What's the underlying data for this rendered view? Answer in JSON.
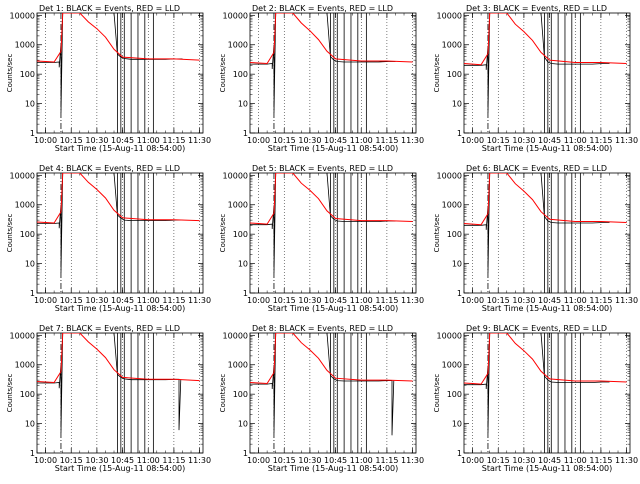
{
  "figure": {
    "start_time_label": "Start Time (15-Aug-11 08:54:00)",
    "ylabel": "Counts/sec"
  },
  "colors": {
    "events": "#000000",
    "lld": "#ff0000",
    "axes": "#000000"
  },
  "chart_data": [
    {
      "type": "line",
      "title": "Det 1: BLACK = Events, RED = LLD",
      "xlabel": "Start Time (15-Aug-11 08:54:00)",
      "ylabel": "Counts/sec",
      "x_ticks": [
        "10:00",
        "10:15",
        "10:30",
        "10:45",
        "11:00",
        "11:15",
        "11:30"
      ],
      "y_ticks": [
        "1",
        "10",
        "100",
        "1000",
        "10000"
      ],
      "y_scale": "log",
      "ylim": [
        1,
        12000
      ],
      "xlim": [
        "09:55",
        "11:32"
      ],
      "series": [
        {
          "name": "Events",
          "color": "#000000",
          "x": [
            "09:55",
            "10:05",
            "10:08",
            "10:08",
            "10:09",
            "10:09",
            "10:10",
            "10:10",
            "10:12",
            "10:40",
            "10:42",
            "10:44",
            "10:46",
            "10:50",
            "11:00",
            "11:10",
            "11:16",
            "11:20"
          ],
          "values": [
            250,
            250,
            260,
            170,
            1100,
            5,
            12000,
            12000,
            12000,
            12000,
            480,
            380,
            340,
            320,
            320,
            320,
            330,
            330
          ]
        },
        {
          "name": "LLD",
          "color": "#ff0000",
          "x": [
            "09:55",
            "10:00",
            "10:05",
            "10:09",
            "10:10",
            "10:20",
            "10:25",
            "10:30",
            "10:35",
            "10:40",
            "10:45",
            "11:00",
            "11:15",
            "11:30"
          ],
          "values": [
            280,
            270,
            260,
            600,
            12000,
            12000,
            6000,
            3500,
            1800,
            700,
            380,
            330,
            330,
            300
          ]
        }
      ]
    },
    {
      "type": "line",
      "title": "Det 2: BLACK = Events, RED = LLD",
      "xlabel": "Start Time (15-Aug-11 08:54:00)",
      "ylabel": "Counts/sec",
      "x_ticks": [
        "10:00",
        "10:15",
        "10:30",
        "10:45",
        "11:00",
        "11:15",
        "11:30"
      ],
      "y_ticks": [
        "1",
        "10",
        "100",
        "1000",
        "10000"
      ],
      "y_scale": "log",
      "ylim": [
        1,
        12000
      ],
      "xlim": [
        "09:55",
        "11:32"
      ],
      "series": [
        {
          "name": "Events",
          "color": "#000000",
          "x": [
            "09:55",
            "10:05",
            "10:08",
            "10:08",
            "10:09",
            "10:09",
            "10:10",
            "10:10",
            "10:12",
            "10:40",
            "10:42",
            "10:44",
            "10:46",
            "10:50",
            "11:00",
            "11:10",
            "11:16",
            "11:20"
          ],
          "values": [
            220,
            220,
            230,
            150,
            1000,
            5,
            12000,
            12000,
            12000,
            12000,
            400,
            300,
            270,
            260,
            260,
            260,
            270,
            270
          ]
        },
        {
          "name": "LLD",
          "color": "#ff0000",
          "x": [
            "09:55",
            "10:00",
            "10:05",
            "10:09",
            "10:10",
            "10:20",
            "10:25",
            "10:30",
            "10:35",
            "10:40",
            "10:45",
            "11:00",
            "11:15",
            "11:30"
          ],
          "values": [
            250,
            240,
            230,
            550,
            12000,
            12000,
            5500,
            3000,
            1500,
            600,
            330,
            280,
            280,
            260
          ]
        }
      ]
    },
    {
      "type": "line",
      "title": "Det 3: BLACK = Events, RED = LLD",
      "xlabel": "Start Time (15-Aug-11 08:54:00)",
      "ylabel": "Counts/sec",
      "x_ticks": [
        "10:00",
        "10:15",
        "10:30",
        "10:45",
        "11:00",
        "11:15",
        "11:30"
      ],
      "y_ticks": [
        "1",
        "10",
        "100",
        "1000",
        "10000"
      ],
      "y_scale": "log",
      "ylim": [
        1,
        12000
      ],
      "xlim": [
        "09:55",
        "11:32"
      ],
      "series": [
        {
          "name": "Events",
          "color": "#000000",
          "x": [
            "09:55",
            "10:05",
            "10:08",
            "10:08",
            "10:09",
            "10:09",
            "10:10",
            "10:10",
            "10:12",
            "10:40",
            "10:42",
            "10:44",
            "10:46",
            "10:50",
            "11:00",
            "11:10",
            "11:16",
            "11:20"
          ],
          "values": [
            200,
            200,
            210,
            140,
            900,
            5,
            12000,
            12000,
            12000,
            12000,
            380,
            260,
            230,
            220,
            220,
            220,
            230,
            230
          ]
        },
        {
          "name": "LLD",
          "color": "#ff0000",
          "x": [
            "09:55",
            "10:00",
            "10:05",
            "10:09",
            "10:10",
            "10:20",
            "10:25",
            "10:30",
            "10:35",
            "10:40",
            "10:45",
            "11:00",
            "11:15",
            "11:30"
          ],
          "values": [
            230,
            220,
            210,
            500,
            12000,
            12000,
            5000,
            2800,
            1400,
            550,
            300,
            250,
            250,
            230
          ]
        }
      ]
    },
    {
      "type": "line",
      "title": "Det 4: BLACK = Events, RED = LLD",
      "xlabel": "Start Time (15-Aug-11 08:54:00)",
      "ylabel": "Counts/sec",
      "x_ticks": [
        "10:00",
        "10:15",
        "10:30",
        "10:45",
        "11:00",
        "11:15",
        "11:30"
      ],
      "y_ticks": [
        "1",
        "10",
        "100",
        "1000",
        "10000"
      ],
      "y_scale": "log",
      "ylim": [
        1,
        12000
      ],
      "xlim": [
        "09:55",
        "11:32"
      ],
      "series": [
        {
          "name": "Events",
          "color": "#000000",
          "x": [
            "09:55",
            "10:05",
            "10:08",
            "10:08",
            "10:09",
            "10:09",
            "10:10",
            "10:10",
            "10:12",
            "10:40",
            "10:42",
            "10:44",
            "10:46",
            "10:50",
            "11:00",
            "11:10",
            "11:16",
            "11:20"
          ],
          "values": [
            230,
            230,
            240,
            160,
            1000,
            5,
            12000,
            12000,
            12000,
            12000,
            450,
            350,
            300,
            290,
            290,
            290,
            300,
            300
          ]
        },
        {
          "name": "LLD",
          "color": "#ff0000",
          "x": [
            "09:55",
            "10:00",
            "10:05",
            "10:09",
            "10:10",
            "10:20",
            "10:25",
            "10:30",
            "10:35",
            "10:40",
            "10:45",
            "11:00",
            "11:15",
            "11:30"
          ],
          "values": [
            260,
            250,
            240,
            580,
            12000,
            12000,
            5800,
            3300,
            1700,
            650,
            360,
            310,
            310,
            290
          ]
        }
      ]
    },
    {
      "type": "line",
      "title": "Det 5: BLACK = Events, RED = LLD",
      "xlabel": "Start Time (15-Aug-11 08:54:00)",
      "ylabel": "Counts/sec",
      "x_ticks": [
        "10:00",
        "10:15",
        "10:30",
        "10:45",
        "11:00",
        "11:15",
        "11:30"
      ],
      "y_ticks": [
        "1",
        "10",
        "100",
        "1000",
        "10000"
      ],
      "y_scale": "log",
      "ylim": [
        1,
        12000
      ],
      "xlim": [
        "09:55",
        "11:32"
      ],
      "series": [
        {
          "name": "Events",
          "color": "#000000",
          "x": [
            "09:55",
            "10:05",
            "10:08",
            "10:08",
            "10:09",
            "10:09",
            "10:10",
            "10:10",
            "10:12",
            "10:40",
            "10:42",
            "10:44",
            "10:46",
            "10:50",
            "11:00",
            "11:10",
            "11:16",
            "11:20"
          ],
          "values": [
            210,
            210,
            220,
            150,
            950,
            5,
            12000,
            12000,
            12000,
            12000,
            420,
            320,
            280,
            270,
            270,
            270,
            280,
            280
          ]
        },
        {
          "name": "LLD",
          "color": "#ff0000",
          "x": [
            "09:55",
            "10:00",
            "10:05",
            "10:09",
            "10:10",
            "10:20",
            "10:25",
            "10:30",
            "10:35",
            "10:40",
            "10:45",
            "11:00",
            "11:15",
            "11:30"
          ],
          "values": [
            240,
            230,
            220,
            520,
            12000,
            12000,
            5400,
            3100,
            1600,
            620,
            340,
            290,
            290,
            270
          ]
        }
      ]
    },
    {
      "type": "line",
      "title": "Det 6: BLACK = Events, RED = LLD",
      "xlabel": "Start Time (15-Aug-11 08:54:00)",
      "ylabel": "Counts/sec",
      "x_ticks": [
        "10:00",
        "10:15",
        "10:30",
        "10:45",
        "11:00",
        "11:15",
        "11:30"
      ],
      "y_ticks": [
        "1",
        "10",
        "100",
        "1000",
        "10000"
      ],
      "y_scale": "log",
      "ylim": [
        1,
        12000
      ],
      "xlim": [
        "09:55",
        "11:32"
      ],
      "series": [
        {
          "name": "Events",
          "color": "#000000",
          "x": [
            "09:55",
            "10:05",
            "10:08",
            "10:08",
            "10:09",
            "10:09",
            "10:10",
            "10:10",
            "10:12",
            "10:40",
            "10:42",
            "10:44",
            "10:46",
            "10:50",
            "11:00",
            "11:10",
            "11:16",
            "11:20"
          ],
          "values": [
            200,
            200,
            210,
            140,
            900,
            5,
            12000,
            12000,
            12000,
            12000,
            400,
            280,
            250,
            240,
            240,
            240,
            250,
            250
          ]
        },
        {
          "name": "LLD",
          "color": "#ff0000",
          "x": [
            "09:55",
            "10:00",
            "10:05",
            "10:09",
            "10:10",
            "10:20",
            "10:25",
            "10:30",
            "10:35",
            "10:40",
            "10:45",
            "11:00",
            "11:15",
            "11:30"
          ],
          "values": [
            230,
            220,
            210,
            500,
            12000,
            12000,
            5200,
            2900,
            1500,
            580,
            320,
            270,
            270,
            250
          ]
        }
      ]
    },
    {
      "type": "line",
      "title": "Det 7: BLACK = Events, RED = LLD",
      "xlabel": "Start Time (15-Aug-11 08:54:00)",
      "ylabel": "Counts/sec",
      "x_ticks": [
        "10:00",
        "10:15",
        "10:30",
        "10:45",
        "11:00",
        "11:15",
        "11:30"
      ],
      "y_ticks": [
        "1",
        "10",
        "100",
        "1000",
        "10000"
      ],
      "y_scale": "log",
      "ylim": [
        1,
        12000
      ],
      "xlim": [
        "09:55",
        "11:32"
      ],
      "series": [
        {
          "name": "Events",
          "color": "#000000",
          "x": [
            "09:55",
            "10:05",
            "10:08",
            "10:08",
            "10:09",
            "10:09",
            "10:10",
            "10:10",
            "10:12",
            "10:40",
            "10:42",
            "10:44",
            "10:46",
            "10:50",
            "11:00",
            "11:10",
            "11:16",
            "11:18",
            "11:18",
            "11:19"
          ],
          "values": [
            240,
            240,
            250,
            160,
            1050,
            5,
            12000,
            12000,
            12000,
            12000,
            470,
            370,
            330,
            310,
            310,
            310,
            320,
            320,
            6,
            320
          ]
        },
        {
          "name": "LLD",
          "color": "#ff0000",
          "x": [
            "09:55",
            "10:00",
            "10:05",
            "10:09",
            "10:10",
            "10:20",
            "10:25",
            "10:30",
            "10:35",
            "10:40",
            "10:45",
            "11:00",
            "11:15",
            "11:30"
          ],
          "values": [
            270,
            260,
            250,
            590,
            12000,
            12000,
            6000,
            3400,
            1750,
            680,
            370,
            320,
            320,
            290
          ]
        }
      ]
    },
    {
      "type": "line",
      "title": "Det 8: BLACK = Events, RED = LLD",
      "xlabel": "Start Time (15-Aug-11 08:54:00)",
      "ylabel": "Counts/sec",
      "x_ticks": [
        "10:00",
        "10:15",
        "10:30",
        "10:45",
        "11:00",
        "11:15",
        "11:30"
      ],
      "y_ticks": [
        "1",
        "10",
        "100",
        "1000",
        "10000"
      ],
      "y_scale": "log",
      "ylim": [
        1,
        12000
      ],
      "xlim": [
        "09:55",
        "11:32"
      ],
      "series": [
        {
          "name": "Events",
          "color": "#000000",
          "x": [
            "09:55",
            "10:05",
            "10:08",
            "10:08",
            "10:09",
            "10:09",
            "10:10",
            "10:10",
            "10:12",
            "10:40",
            "10:42",
            "10:44",
            "10:46",
            "10:50",
            "11:00",
            "11:10",
            "11:16",
            "11:18",
            "11:18",
            "11:19"
          ],
          "values": [
            220,
            220,
            230,
            150,
            980,
            5,
            12000,
            12000,
            12000,
            12000,
            430,
            330,
            290,
            280,
            280,
            280,
            290,
            290,
            4,
            290
          ]
        },
        {
          "name": "LLD",
          "color": "#ff0000",
          "x": [
            "09:55",
            "10:00",
            "10:05",
            "10:09",
            "10:10",
            "10:20",
            "10:25",
            "10:30",
            "10:35",
            "10:40",
            "10:45",
            "11:00",
            "11:15",
            "11:30"
          ],
          "values": [
            250,
            240,
            230,
            540,
            12000,
            12000,
            5600,
            3200,
            1650,
            640,
            350,
            300,
            300,
            280
          ]
        }
      ]
    },
    {
      "type": "line",
      "title": "Det 9: BLACK = Events, RED = LLD",
      "xlabel": "Start Time (15-Aug-11 08:54:00)",
      "ylabel": "Counts/sec",
      "x_ticks": [
        "10:00",
        "10:15",
        "10:30",
        "10:45",
        "11:00",
        "11:15",
        "11:30"
      ],
      "y_ticks": [
        "1",
        "10",
        "100",
        "1000",
        "10000"
      ],
      "y_scale": "log",
      "ylim": [
        1,
        12000
      ],
      "xlim": [
        "09:55",
        "11:32"
      ],
      "series": [
        {
          "name": "Events",
          "color": "#000000",
          "x": [
            "09:55",
            "10:05",
            "10:08",
            "10:08",
            "10:09",
            "10:09",
            "10:10",
            "10:10",
            "10:12",
            "10:40",
            "10:42",
            "10:44",
            "10:46",
            "10:50",
            "11:00",
            "11:10",
            "11:16",
            "11:20"
          ],
          "values": [
            210,
            210,
            220,
            150,
            920,
            5,
            12000,
            12000,
            12000,
            12000,
            410,
            300,
            260,
            250,
            250,
            250,
            260,
            260
          ]
        },
        {
          "name": "LLD",
          "color": "#ff0000",
          "x": [
            "09:55",
            "10:00",
            "10:05",
            "10:09",
            "10:10",
            "10:20",
            "10:25",
            "10:30",
            "10:35",
            "10:40",
            "10:45",
            "11:00",
            "11:15",
            "11:30"
          ],
          "values": [
            240,
            230,
            220,
            510,
            12000,
            12000,
            5300,
            3000,
            1550,
            600,
            330,
            280,
            280,
            260
          ]
        }
      ]
    }
  ]
}
